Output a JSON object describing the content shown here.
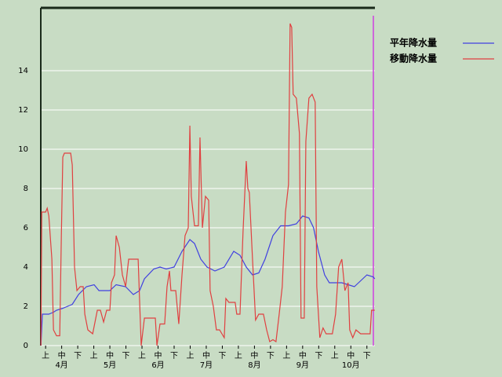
{
  "chart_data": {
    "type": "line",
    "xlim": [
      -0.3,
      20.5
    ],
    "ylim": [
      0,
      17.2
    ],
    "yticks": [
      0,
      2,
      4,
      6,
      8,
      10,
      12,
      14
    ],
    "xticks": [
      {
        "value": 0,
        "label": "上"
      },
      {
        "value": 1,
        "label": "中"
      },
      {
        "value": 2,
        "label": "下"
      },
      {
        "value": 3,
        "label": "上"
      },
      {
        "value": 4,
        "label": "中"
      },
      {
        "value": 5,
        "label": "下"
      },
      {
        "value": 6,
        "label": "上"
      },
      {
        "value": 7,
        "label": "中"
      },
      {
        "value": 8,
        "label": "下"
      },
      {
        "value": 9,
        "label": "上"
      },
      {
        "value": 10,
        "label": "中"
      },
      {
        "value": 11,
        "label": "下"
      },
      {
        "value": 12,
        "label": "上"
      },
      {
        "value": 13,
        "label": "中"
      },
      {
        "value": 14,
        "label": "下"
      },
      {
        "value": 15,
        "label": "上"
      },
      {
        "value": 16,
        "label": "中"
      },
      {
        "value": 17,
        "label": "下"
      },
      {
        "value": 18,
        "label": "上"
      },
      {
        "value": 19,
        "label": "中"
      },
      {
        "value": 20,
        "label": "下"
      }
    ],
    "month_ticks": [
      {
        "value": 1,
        "label": "4月"
      },
      {
        "value": 4,
        "label": "5月"
      },
      {
        "value": 7,
        "label": "6月"
      },
      {
        "value": 10,
        "label": "7月"
      },
      {
        "value": 13,
        "label": "8月"
      },
      {
        "value": 16,
        "label": "9月"
      },
      {
        "value": 19,
        "label": "10月"
      }
    ],
    "grid": true,
    "series": [
      {
        "name": "平年降水量",
        "color": "#4040e0",
        "x": [
          -0.29,
          -0.2,
          0.2,
          0.49,
          0.68,
          1.07,
          1.37,
          1.66,
          2.05,
          2.54,
          3.02,
          3.32,
          4,
          4.39,
          4.98,
          5.46,
          5.85,
          6.15,
          6.73,
          7.12,
          7.51,
          8,
          8.49,
          8.98,
          9.27,
          9.66,
          10.05,
          10.54,
          11.12,
          11.71,
          12.1,
          12.49,
          12.88,
          13.27,
          13.66,
          14.15,
          14.63,
          15.12,
          15.61,
          16,
          16.39,
          16.68,
          16.98,
          17.37,
          17.66,
          18.44,
          18.83,
          19.22,
          19.61,
          20,
          20.39,
          20.49
        ],
        "values": [
          0,
          1.6,
          1.6,
          1.7,
          1.8,
          1.9,
          2,
          2.1,
          2.6,
          3,
          3.1,
          2.8,
          2.8,
          3.1,
          3,
          2.6,
          2.8,
          3.4,
          3.9,
          4,
          3.9,
          4,
          4.8,
          5.4,
          5.2,
          4.4,
          4,
          3.8,
          4,
          4.8,
          4.6,
          4,
          3.6,
          3.7,
          4.4,
          5.6,
          6.1,
          6.1,
          6.2,
          6.6,
          6.5,
          6,
          4.8,
          3.6,
          3.2,
          3.2,
          3.1,
          3,
          3.3,
          3.6,
          3.5,
          3.4
        ]
      },
      {
        "name": "移動降水量",
        "color": "#e04040",
        "x": [
          -0.29,
          -0.24,
          0,
          0.1,
          0.2,
          0.39,
          0.49,
          0.68,
          0.88,
          0.98,
          1.07,
          1.17,
          1.56,
          1.66,
          1.8,
          1.95,
          2.15,
          2.34,
          2.44,
          2.63,
          2.93,
          3.22,
          3.41,
          3.61,
          3.8,
          4,
          4.1,
          4.29,
          4.39,
          4.59,
          4.78,
          4.98,
          5.17,
          5.76,
          5.95,
          6.15,
          6.83,
          6.93,
          7.12,
          7.41,
          7.56,
          7.71,
          7.8,
          8.1,
          8.29,
          8.49,
          8.68,
          8.88,
          8.98,
          9.07,
          9.27,
          9.51,
          9.61,
          9.76,
          9.95,
          10.15,
          10.24,
          10.44,
          10.63,
          10.83,
          11.12,
          11.22,
          11.41,
          11.8,
          11.9,
          12.1,
          12.29,
          12.49,
          12.59,
          12.68,
          12.88,
          13.07,
          13.27,
          13.56,
          13.76,
          13.95,
          14.15,
          14.34,
          14.54,
          14.73,
          14.93,
          15.12,
          15.22,
          15.32,
          15.41,
          15.61,
          15.8,
          15.9,
          16.1,
          16.2,
          16.39,
          16.59,
          16.78,
          16.88,
          17.07,
          17.27,
          17.46,
          17.85,
          18.05,
          18.24,
          18.44,
          18.63,
          18.83,
          18.93,
          19.12,
          19.32,
          19.61,
          20,
          20.2,
          20.29,
          20.49
        ],
        "values": [
          0,
          6.8,
          6.8,
          7,
          6.6,
          4.4,
          0.8,
          0.5,
          0.5,
          5.6,
          9.6,
          9.8,
          9.8,
          9.2,
          4,
          2.8,
          3,
          3,
          1.6,
          0.8,
          0.6,
          1.8,
          1.8,
          1.2,
          1.8,
          1.8,
          3.2,
          3.6,
          5.6,
          5,
          3.6,
          3,
          4.4,
          4.4,
          0,
          1.4,
          1.4,
          0,
          1.1,
          1.1,
          3,
          3.8,
          2.8,
          2.8,
          1.1,
          3.6,
          5.6,
          6,
          11.2,
          7.6,
          6.1,
          6.1,
          10.6,
          6,
          7.6,
          7.4,
          2.8,
          2,
          0.8,
          0.8,
          0.4,
          2.4,
          2.2,
          2.2,
          1.6,
          1.6,
          5.8,
          9.4,
          8,
          7.8,
          4.4,
          1.3,
          1.6,
          1.6,
          0.8,
          0.2,
          0.3,
          0.2,
          1.6,
          3,
          6.8,
          8.2,
          16.4,
          16.2,
          12.8,
          12.6,
          10.8,
          1.4,
          1.4,
          10.4,
          12.6,
          12.8,
          12.4,
          3,
          0.4,
          0.9,
          0.6,
          0.6,
          1.6,
          4,
          4.4,
          2.8,
          3.2,
          0.8,
          0.4,
          0.8,
          0.6,
          0.6,
          0.6,
          1.8,
          1.8
        ]
      }
    ]
  }
}
